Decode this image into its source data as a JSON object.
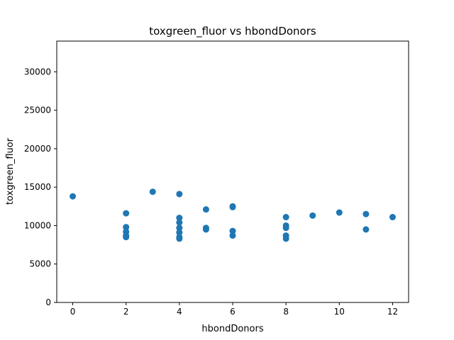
{
  "chart_data": {
    "type": "scatter",
    "title": "toxgreen_fluor vs hbondDonors",
    "xlabel": "hbondDonors",
    "ylabel": "toxgreen_fluor",
    "xlim": [
      -0.6,
      12.6
    ],
    "ylim": [
      0,
      34000
    ],
    "xticks": [
      0,
      2,
      4,
      6,
      8,
      10,
      12
    ],
    "yticks": [
      0,
      5000,
      10000,
      15000,
      20000,
      25000,
      30000
    ],
    "grid": false,
    "legend": "none",
    "marker_color": "#1f77b4",
    "points": [
      {
        "x": 0,
        "y": 13800
      },
      {
        "x": 2,
        "y": 11600
      },
      {
        "x": 2,
        "y": 9800
      },
      {
        "x": 2,
        "y": 9200
      },
      {
        "x": 2,
        "y": 8700
      },
      {
        "x": 2,
        "y": 8500
      },
      {
        "x": 3,
        "y": 14400
      },
      {
        "x": 4,
        "y": 14100
      },
      {
        "x": 4,
        "y": 11000
      },
      {
        "x": 4,
        "y": 10400
      },
      {
        "x": 4,
        "y": 9700
      },
      {
        "x": 4,
        "y": 9100
      },
      {
        "x": 4,
        "y": 8500
      },
      {
        "x": 4,
        "y": 8300
      },
      {
        "x": 5,
        "y": 12100
      },
      {
        "x": 5,
        "y": 9700
      },
      {
        "x": 5,
        "y": 9500
      },
      {
        "x": 6,
        "y": 12400
      },
      {
        "x": 6,
        "y": 12500
      },
      {
        "x": 6,
        "y": 9300
      },
      {
        "x": 6,
        "y": 8700
      },
      {
        "x": 8,
        "y": 11100
      },
      {
        "x": 8,
        "y": 10000
      },
      {
        "x": 8,
        "y": 9700
      },
      {
        "x": 8,
        "y": 8700
      },
      {
        "x": 8,
        "y": 8300
      },
      {
        "x": 9,
        "y": 11300
      },
      {
        "x": 10,
        "y": 11700
      },
      {
        "x": 11,
        "y": 11500
      },
      {
        "x": 11,
        "y": 9500
      },
      {
        "x": 12,
        "y": 11100
      }
    ]
  }
}
